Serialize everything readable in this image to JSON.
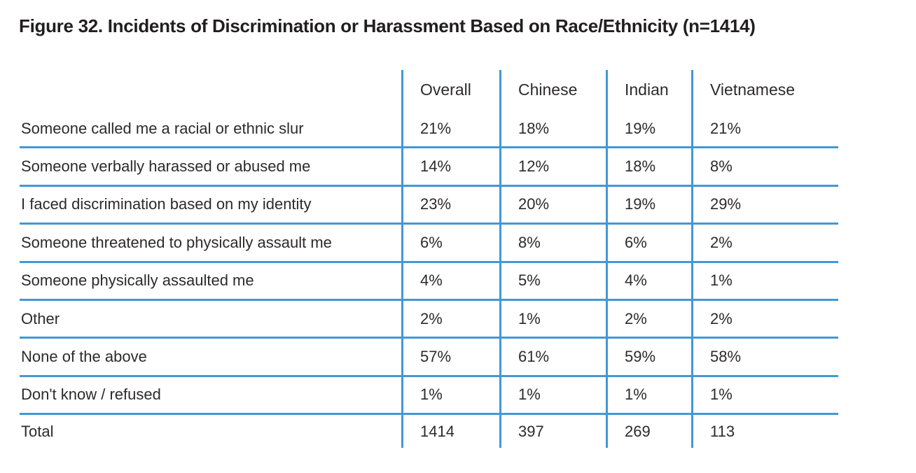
{
  "figure": {
    "title": "Figure 32. Incidents of Discrimination or Harassment Based on Race/Ethnicity (n=1414)"
  },
  "chart_data": {
    "type": "table",
    "title": "Figure 32. Incidents of Discrimination or Harassment Based on Race/Ethnicity (n=1414)",
    "sample_size": 1414,
    "columns": [
      "Overall",
      "Chinese",
      "Indian",
      "Vietnamese"
    ],
    "rows": [
      {
        "label": "Someone called me a racial or ethnic slur",
        "values": [
          "21%",
          "18%",
          "19%",
          "21%"
        ]
      },
      {
        "label": "Someone verbally harassed or abused me",
        "values": [
          "14%",
          "12%",
          "18%",
          "8%"
        ]
      },
      {
        "label": "I faced discrimination based on my identity",
        "values": [
          "23%",
          "20%",
          "19%",
          "29%"
        ]
      },
      {
        "label": "Someone threatened to physically assault me",
        "values": [
          "6%",
          "8%",
          "6%",
          "2%"
        ]
      },
      {
        "label": "Someone physically assaulted me",
        "values": [
          "4%",
          "5%",
          "4%",
          "1%"
        ]
      },
      {
        "label": "Other",
        "values": [
          "2%",
          "1%",
          "2%",
          "2%"
        ]
      },
      {
        "label": "None of the above",
        "values": [
          "57%",
          "61%",
          "59%",
          "58%"
        ]
      },
      {
        "label": "Don't know / refused",
        "values": [
          "1%",
          "1%",
          "1%",
          "1%"
        ]
      },
      {
        "label": "Total",
        "values": [
          "1414",
          "397",
          "269",
          "113"
        ]
      }
    ],
    "layout": {
      "grid": "horizontal rules below each data row except Total; vertical rules left of each value column",
      "legend_position": "none"
    },
    "colors": {
      "line": "#4398d4",
      "text": "#2d2a2b",
      "title": "#221e1f",
      "background": "#ffffff"
    }
  }
}
